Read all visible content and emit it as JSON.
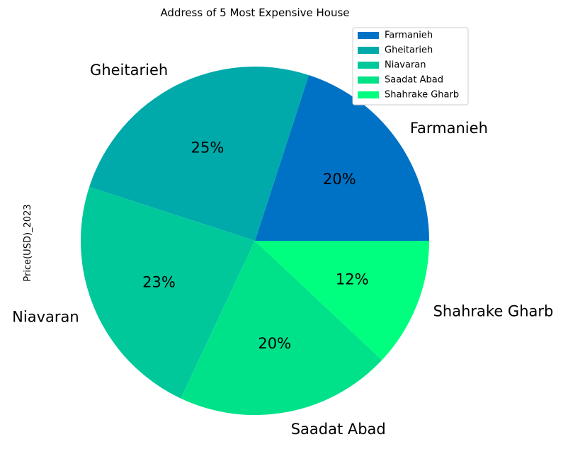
{
  "chart_data": {
    "type": "pie",
    "title": "Address of 5 Most Expensive House",
    "ylabel": "Price(USD)_2023",
    "categories": [
      "Farmanieh",
      "Gheitarieh",
      "Niavaran",
      "Saadat Abad",
      "Shahrake Gharb"
    ],
    "values": [
      20,
      25,
      23,
      20,
      12
    ],
    "pct_labels": [
      "20%",
      "25%",
      "23%",
      "20%",
      "12%"
    ],
    "colors": [
      "#0072c6",
      "#00aaaa",
      "#00c89a",
      "#00e28a",
      "#00ff7f"
    ],
    "legend": {
      "placement": "top-right",
      "entries": [
        "Farmanieh",
        "Gheitarieh",
        "Niavaran",
        "Saadat Abad",
        "Shahrake Gharb"
      ]
    },
    "start_angle_deg": 0,
    "direction": "counterclockwise"
  }
}
